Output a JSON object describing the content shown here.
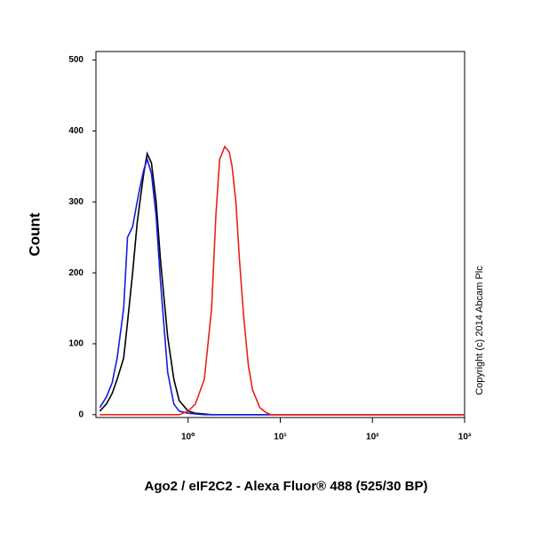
{
  "chart_data": {
    "type": "line",
    "x_label": "Ago2 / eIF2C2 - Alexa Fluor® 488 (525/30 BP)",
    "y_label": "Count",
    "annotation": "Copyright (c) 2014 Abcam Plc",
    "x_log": true,
    "xlim": [
      0.1,
      1000
    ],
    "xticks": [
      {
        "value": 1,
        "label": "10⁰"
      },
      {
        "value": 10,
        "label": "10¹"
      },
      {
        "value": 100,
        "label": "10²"
      },
      {
        "value": 1000,
        "label": "10³"
      }
    ],
    "ylim": [
      -4,
      512
    ],
    "yticks": [
      0,
      100,
      200,
      300,
      400,
      500
    ],
    "x": [
      0.11,
      0.13,
      0.15,
      0.17,
      0.2,
      0.22,
      0.25,
      0.28,
      0.3,
      0.33,
      0.36,
      0.4,
      0.45,
      0.5,
      0.6,
      0.7,
      0.8,
      1,
      1.2,
      1.5,
      1.8,
      2,
      2.2,
      2.5,
      2.8,
      3,
      3.3,
      3.6,
      4,
      4.5,
      5,
      6,
      7,
      8,
      10,
      100,
      1000
    ],
    "series": [
      {
        "color": "#000000",
        "values": [
          5,
          15,
          30,
          50,
          80,
          130,
          200,
          270,
          300,
          340,
          368,
          355,
          300,
          220,
          110,
          50,
          20,
          5,
          2,
          1,
          0,
          0,
          0,
          0,
          0,
          0,
          0,
          0,
          0,
          0,
          0,
          0,
          0,
          0,
          0,
          0,
          0
        ]
      },
      {
        "color": "#1a1adc",
        "values": [
          10,
          25,
          45,
          80,
          150,
          250,
          265,
          300,
          320,
          345,
          360,
          340,
          280,
          190,
          60,
          15,
          5,
          2,
          1,
          0,
          0,
          0,
          0,
          0,
          0,
          0,
          0,
          0,
          0,
          0,
          0,
          0,
          0,
          0,
          0,
          0,
          0
        ]
      },
      {
        "color": "#e8201c",
        "values": [
          0,
          0,
          0,
          0,
          0,
          0,
          0,
          0,
          0,
          0,
          0,
          0,
          0,
          0,
          0,
          0,
          0,
          5,
          15,
          50,
          150,
          280,
          360,
          378,
          370,
          350,
          300,
          220,
          140,
          70,
          35,
          10,
          3,
          0,
          0,
          0,
          0
        ]
      }
    ]
  }
}
